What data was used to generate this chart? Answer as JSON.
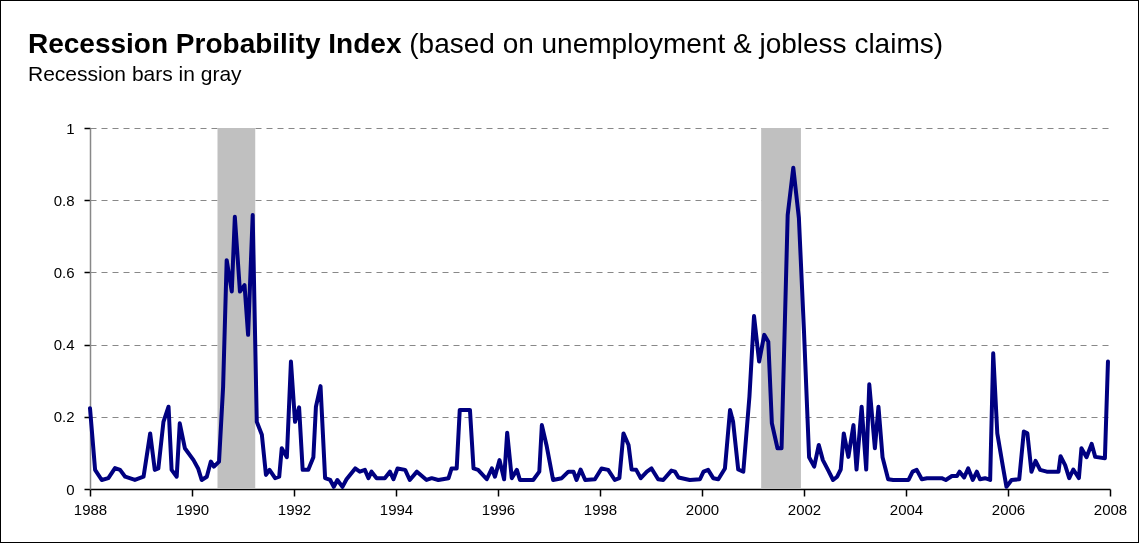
{
  "chart_data": {
    "type": "line",
    "title": "Recession Probability Index",
    "subtitle": "(based on unemployment & jobless claims)",
    "annotations": [
      "Recession bars in gray"
    ],
    "xlim": [
      1988,
      2008
    ],
    "xticks": [
      1988,
      1990,
      1992,
      1994,
      1996,
      1998,
      2000,
      2002,
      2004,
      2006,
      2008
    ],
    "ylim": [
      0,
      1
    ],
    "yticks": [
      0,
      0.2,
      0.4,
      0.6,
      0.8,
      1
    ],
    "grid": "y",
    "bands": [
      {
        "axis": "x",
        "from": 1990.5,
        "to": 1991.24,
        "color": "#c0c0c0"
      },
      {
        "axis": "x",
        "from": 2001.16,
        "to": 2001.94,
        "color": "#c0c0c0"
      }
    ],
    "series": [
      {
        "color": "#000080",
        "x": [
          1988.0,
          1988.1,
          1988.23,
          1988.36,
          1988.49,
          1988.59,
          1988.69,
          1988.88,
          1989.05,
          1989.18,
          1989.27,
          1989.34,
          1989.44,
          1989.54,
          1989.6,
          1989.7,
          1989.76,
          1989.86,
          1990.03,
          1990.12,
          1990.19,
          1990.29,
          1990.37,
          1990.43,
          1990.53,
          1990.61,
          1990.68,
          1990.78,
          1990.84,
          1990.94,
          1991.03,
          1991.1,
          1991.19,
          1991.27,
          1991.37,
          1991.45,
          1991.52,
          1991.63,
          1991.71,
          1991.76,
          1991.86,
          1991.94,
          1992.02,
          1992.1,
          1992.17,
          1992.28,
          1992.38,
          1992.43,
          1992.52,
          1992.61,
          1992.71,
          1992.78,
          1992.85,
          1992.95,
          1993.03,
          1993.2,
          1993.29,
          1993.39,
          1993.46,
          1993.52,
          1993.62,
          1993.78,
          1993.88,
          1993.95,
          1994.03,
          1994.18,
          1994.27,
          1994.41,
          1994.6,
          1994.7,
          1994.83,
          1995.03,
          1995.09,
          1995.19,
          1995.25,
          1995.45,
          1995.52,
          1995.61,
          1995.78,
          1995.88,
          1995.94,
          1996.03,
          1996.12,
          1996.18,
          1996.27,
          1996.37,
          1996.43,
          1996.69,
          1996.81,
          1996.86,
          1996.95,
          1997.08,
          1997.25,
          1997.38,
          1997.48,
          1997.54,
          1997.62,
          1997.71,
          1997.9,
          1998.03,
          1998.16,
          1998.29,
          1998.38,
          1998.46,
          1998.56,
          1998.62,
          1998.71,
          1998.8,
          1998.92,
          1999.01,
          1999.14,
          1999.24,
          1999.4,
          1999.47,
          1999.54,
          1999.76,
          1999.96,
          2000.03,
          2000.12,
          2000.22,
          2000.32,
          2000.45,
          2000.55,
          2000.61,
          2000.71,
          2000.81,
          2000.93,
          2001.02,
          2001.12,
          2001.22,
          2001.3,
          2001.37,
          2001.48,
          2001.56,
          2001.68,
          2001.79,
          2001.9,
          2002.0,
          2002.1,
          2002.2,
          2002.29,
          2002.37,
          2002.47,
          2002.57,
          2002.65,
          2002.72,
          2002.78,
          2002.87,
          2002.97,
          2003.03,
          2003.13,
          2003.22,
          2003.28,
          2003.39,
          2003.46,
          2003.54,
          2003.65,
          2003.75,
          2004.05,
          2004.13,
          2004.21,
          2004.31,
          2004.41,
          2004.7,
          2004.78,
          2004.9,
          2005.0,
          2005.05,
          2005.14,
          2005.22,
          2005.31,
          2005.39,
          2005.45,
          2005.55,
          2005.65,
          2005.71,
          2005.79,
          2005.9,
          2005.97,
          2006.07,
          2006.22,
          2006.31,
          2006.38,
          2006.46,
          2006.54,
          2006.63,
          2006.76,
          2006.99,
          2007.03,
          2007.12,
          2007.2,
          2007.28,
          2007.39,
          2007.44,
          2007.54,
          2007.64,
          2007.71,
          2007.9,
          2007.96
        ],
        "values": [
          0.224,
          0.053,
          0.025,
          0.03,
          0.058,
          0.053,
          0.034,
          0.025,
          0.034,
          0.154,
          0.053,
          0.057,
          0.186,
          0.228,
          0.053,
          0.034,
          0.182,
          0.113,
          0.08,
          0.057,
          0.025,
          0.034,
          0.076,
          0.062,
          0.076,
          0.283,
          0.634,
          0.547,
          0.754,
          0.547,
          0.565,
          0.427,
          0.759,
          0.186,
          0.15,
          0.039,
          0.053,
          0.03,
          0.034,
          0.113,
          0.088,
          0.353,
          0.186,
          0.226,
          0.053,
          0.053,
          0.088,
          0.228,
          0.285,
          0.03,
          0.025,
          0.006,
          0.025,
          0.006,
          0.027,
          0.057,
          0.048,
          0.053,
          0.03,
          0.048,
          0.03,
          0.03,
          0.048,
          0.027,
          0.057,
          0.053,
          0.025,
          0.048,
          0.025,
          0.03,
          0.025,
          0.03,
          0.057,
          0.057,
          0.219,
          0.219,
          0.057,
          0.053,
          0.027,
          0.057,
          0.034,
          0.08,
          0.027,
          0.156,
          0.03,
          0.053,
          0.025,
          0.025,
          0.048,
          0.177,
          0.122,
          0.025,
          0.03,
          0.048,
          0.048,
          0.025,
          0.054,
          0.025,
          0.027,
          0.057,
          0.053,
          0.025,
          0.03,
          0.154,
          0.122,
          0.054,
          0.053,
          0.03,
          0.048,
          0.057,
          0.027,
          0.025,
          0.051,
          0.048,
          0.032,
          0.025,
          0.027,
          0.048,
          0.053,
          0.03,
          0.027,
          0.057,
          0.219,
          0.186,
          0.054,
          0.048,
          0.256,
          0.479,
          0.353,
          0.427,
          0.408,
          0.182,
          0.113,
          0.113,
          0.759,
          0.89,
          0.75,
          0.436,
          0.088,
          0.062,
          0.122,
          0.08,
          0.053,
          0.025,
          0.034,
          0.054,
          0.154,
          0.089,
          0.177,
          0.054,
          0.228,
          0.054,
          0.29,
          0.113,
          0.228,
          0.088,
          0.027,
          0.025,
          0.025,
          0.048,
          0.053,
          0.027,
          0.03,
          0.03,
          0.025,
          0.036,
          0.036,
          0.048,
          0.032,
          0.057,
          0.025,
          0.048,
          0.027,
          0.03,
          0.025,
          0.376,
          0.154,
          0.062,
          0.006,
          0.025,
          0.027,
          0.159,
          0.154,
          0.048,
          0.078,
          0.053,
          0.048,
          0.048,
          0.091,
          0.066,
          0.03,
          0.054,
          0.03,
          0.113,
          0.088,
          0.125,
          0.089,
          0.085,
          0.353
        ]
      }
    ]
  }
}
